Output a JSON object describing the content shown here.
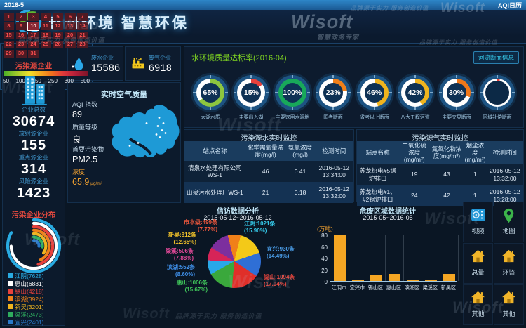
{
  "header": {
    "title": "感知环境 智慧环保"
  },
  "watermark": {
    "brand": "Wisoft",
    "slogan": "品牌源于实力 服务创造价值",
    "tagline": "智慧政务专家"
  },
  "left_panel": {
    "title": "污染源企业",
    "stats": [
      {
        "label": "企业总数",
        "value": "30674"
      },
      {
        "label": "放射源企业",
        "value": "155"
      },
      {
        "label": "重点源企业",
        "value": "314"
      },
      {
        "label": "风险源企业",
        "value": "1423"
      }
    ],
    "distribution": {
      "title": "污染企业分布",
      "max_sweep_deg": 300,
      "items": [
        {
          "name": "江阴",
          "value": 7628,
          "color": "#29abe2"
        },
        {
          "name": "惠山",
          "value": 6831,
          "color": "#ffffff"
        },
        {
          "name": "锡山",
          "value": 4218,
          "color": "#e8413c"
        },
        {
          "name": "滨湖",
          "value": 3924,
          "color": "#f08019"
        },
        {
          "name": "新吴",
          "value": 3201,
          "color": "#f0b41e"
        },
        {
          "name": "梁溪",
          "value": 2473,
          "color": "#2eac5e"
        },
        {
          "name": "宜兴",
          "value": 2401,
          "color": "#2979c9"
        }
      ]
    }
  },
  "top_cards": [
    {
      "label": "废水企业",
      "value": "15586",
      "icon": "water-drop"
    },
    {
      "label": "废气企业",
      "value": "6918",
      "icon": "factory"
    }
  ],
  "air_quality": {
    "title": "实时空气质量",
    "items": [
      {
        "label": "AQI 指数",
        "value": "89"
      },
      {
        "label": "质量等级",
        "value": "良"
      },
      {
        "label": "首要污染物",
        "value": "PM2.5"
      },
      {
        "label": "浓度",
        "value": "65.9",
        "unit": "μg/m³",
        "accent": true
      }
    ]
  },
  "water_gauges": {
    "title": "水环境质量达标率(2016-04)",
    "button_label": "河流断面信息",
    "gauges": [
      {
        "value": "65%",
        "pct": 65,
        "color": "#8dc63f",
        "label": "太湖水质"
      },
      {
        "value": "15%",
        "pct": 15,
        "color": "#e8413c",
        "label": "主要出入湖"
      },
      {
        "value": "100%",
        "pct": 100,
        "color": "#18a85a",
        "label": "主要饮用水源地"
      },
      {
        "value": "23%",
        "pct": 23,
        "color": "#f08019",
        "label": "国考断面"
      },
      {
        "value": "46%",
        "pct": 46,
        "color": "#f0b41e",
        "label": "省考以上断面"
      },
      {
        "value": "42%",
        "pct": 42,
        "color": "#f0b41e",
        "label": "八大工程河道"
      },
      {
        "value": "30%",
        "pct": 30,
        "color": "#f07819",
        "label": "主要交界断面"
      },
      {
        "value": "",
        "pct": 3,
        "color": "#e8413c",
        "label": "区域补偿断面"
      }
    ]
  },
  "water_table": {
    "title": "污染源水实时监控",
    "columns": [
      "站点名称",
      "化学需氧量浓度(mg/l)",
      "氨氮浓度(mg/l)",
      "检测时间"
    ],
    "rows": [
      [
        "清泉水处理有限公司WS-1",
        "46",
        "0.41",
        "2016-05-12 13:34:00"
      ],
      [
        "山泉污水处理厂WS-1",
        "21",
        "0.18",
        "2016-05-12 13:32:00"
      ]
    ]
  },
  "air_table": {
    "title": "污染源气实时监控",
    "columns": [
      "站点名称",
      "二氧化硫浓度(mg/m³)",
      "氮氧化物浓度(mg/m³)",
      "烟尘浓度(mg/m³)",
      "检测时间"
    ],
    "rows": [
      [
        "苏龙热电#5锅炉排口",
        "19",
        "43",
        "1",
        "2016-05-12 13:32:00"
      ],
      [
        "苏龙热电#1、#2锅炉排口",
        "24",
        "42",
        "1",
        "2016-05-12 13:28:00"
      ]
    ]
  },
  "aqi_calendar": {
    "month_label": "2016-5",
    "title": "AQI日历",
    "days_in_month": 31,
    "selected_day": 10,
    "marker_icon": "▼",
    "scale_ticks": [
      "50",
      "100",
      "150",
      "250",
      "300",
      "500"
    ]
  },
  "complaints_pie": {
    "title": "信访数据分析",
    "subtitle": "2015-05-12~2016-05-12",
    "unit": "条",
    "items": [
      {
        "name": "市本级",
        "count": 499,
        "pct": "7.77%",
        "slice_color": "#f08019",
        "label_color": "#e8563c"
      },
      {
        "name": "江阴",
        "count": 1021,
        "pct": "15.90%",
        "slice_color": "#f3c918",
        "label_color": "#35c8e8"
      },
      {
        "name": "宜兴",
        "count": 930,
        "pct": "14.49%",
        "slice_color": "#2f6fd6",
        "label_color": "#4a9de8"
      },
      {
        "name": "锡山",
        "count": 1094,
        "pct": "17.04%",
        "slice_color": "#e02f29",
        "label_color": "#e8453c"
      },
      {
        "name": "惠山",
        "count": 1006,
        "pct": "15.67%",
        "slice_color": "#3aa83c",
        "label_color": "#3fc45a"
      },
      {
        "name": "滨湖",
        "count": 552,
        "pct": "8.60%",
        "slice_color": "#29a8e8",
        "label_color": "#3f8fe8"
      },
      {
        "name": "梁溪",
        "count": 506,
        "pct": "7.88%",
        "slice_color": "#d62458",
        "label_color": "#e84a9b"
      },
      {
        "name": "新吴",
        "count": 812,
        "pct": "12.65%",
        "slice_color": "#7c2f9e",
        "label_color": "#f0c12a"
      }
    ]
  },
  "waste_bar": {
    "title": "危废区域数据统计",
    "subtitle": "2015-05~2016-05",
    "ylabel": "(万吨)",
    "ymax": 80,
    "yticks": [
      0,
      20,
      40,
      60,
      80
    ],
    "categories": [
      "江阴市",
      "宜兴市",
      "锡山区",
      "惠山区",
      "滨湖区",
      "梁溪区",
      "新吴区"
    ],
    "values": [
      79,
      2,
      10,
      12,
      1.5,
      0.5,
      12
    ],
    "bar_color": "#f5a623"
  },
  "quick_menu": {
    "items": [
      {
        "label": "视频",
        "icon": "video"
      },
      {
        "label": "地图",
        "icon": "map-pin"
      },
      {
        "label": "总量",
        "icon": "house"
      },
      {
        "label": "环监",
        "icon": "house"
      },
      {
        "label": "其他",
        "icon": "house"
      },
      {
        "label": "其他",
        "icon": "house"
      }
    ]
  }
}
